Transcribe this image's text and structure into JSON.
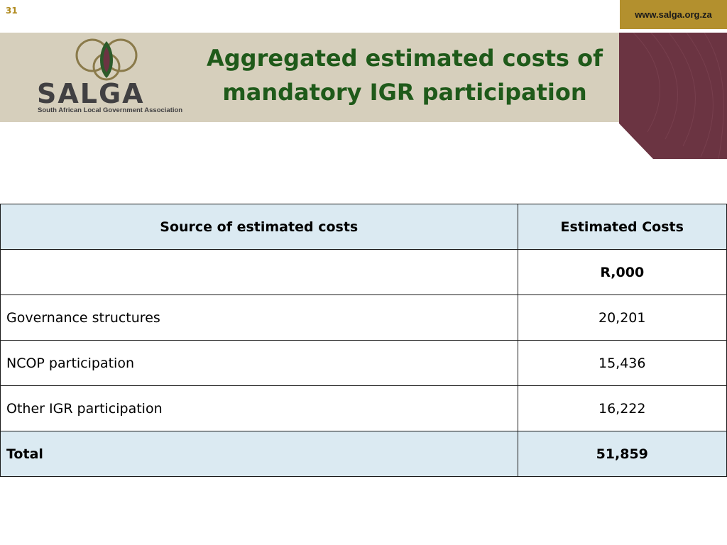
{
  "slide": {
    "number": "31",
    "url": "www.salga.org.za",
    "title_line1": "Aggregated estimated costs of",
    "title_line2": "mandatory IGR participation"
  },
  "logo": {
    "name": "SALGA",
    "tagline": "South African Local Government Association"
  },
  "colors": {
    "header_band": "#d6cfbc",
    "maroon": "#6b3442",
    "gold": "#b3902e",
    "title_green": "#1f5a1a",
    "table_highlight": "#dbeaf2"
  },
  "table": {
    "headers": [
      "Source of estimated costs",
      "Estimated Costs"
    ],
    "units": "R,000",
    "rows": [
      {
        "label": "Governance structures",
        "value": "20,201"
      },
      {
        "label": "NCOP participation",
        "value": "15,436"
      },
      {
        "label": "Other IGR participation",
        "value": "16,222"
      }
    ],
    "total": {
      "label": "Total",
      "value": "51,859"
    }
  }
}
